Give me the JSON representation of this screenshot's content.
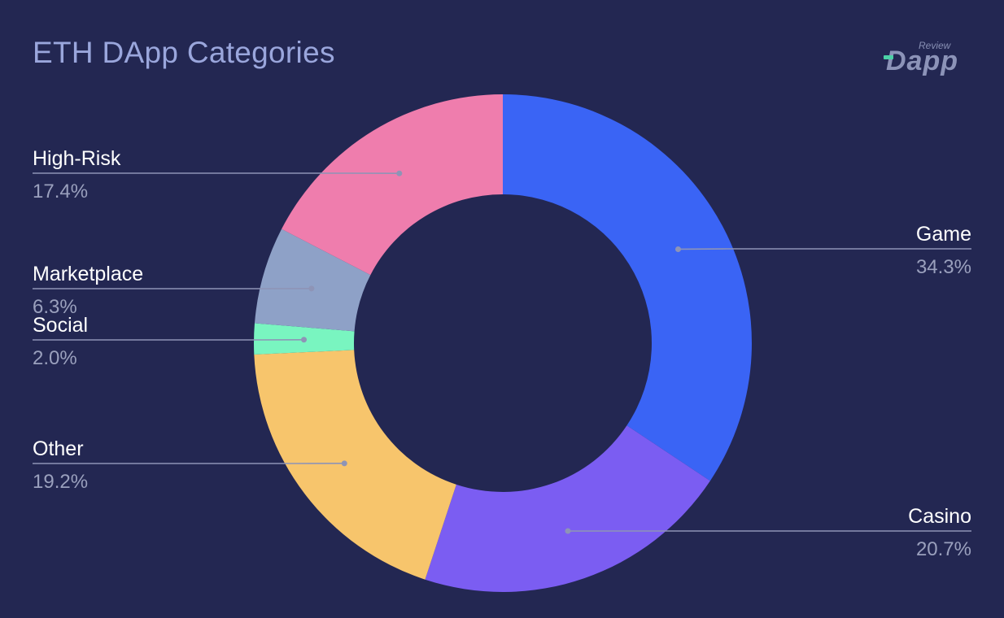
{
  "title": "ETH DApp Categories",
  "logo": {
    "text": "Dapp",
    "subtext": "Review"
  },
  "colors": {
    "background": "#232752",
    "label": "#ffffff",
    "value": "#9aa0bd",
    "leader": "#8e94b6"
  },
  "chart_data": {
    "type": "pie",
    "title": "ETH DApp Categories",
    "donut": true,
    "slices": [
      {
        "label": "Game",
        "percent_label": "34.3%",
        "value": 34.3,
        "color": "#3a64f5"
      },
      {
        "label": "Casino",
        "percent_label": "20.7%",
        "value": 20.7,
        "color": "#7b5df2"
      },
      {
        "label": "Other",
        "percent_label": "19.2%",
        "value": 19.2,
        "color": "#f7c56c"
      },
      {
        "label": "Social",
        "percent_label": "2.0%",
        "value": 2.0,
        "color": "#79f5c0"
      },
      {
        "label": "Marketplace",
        "percent_label": "6.3%",
        "value": 6.3,
        "color": "#8ea1c7"
      },
      {
        "label": "High-Risk",
        "percent_label": "17.4%",
        "value": 17.4,
        "color": "#ef7dad"
      }
    ]
  }
}
